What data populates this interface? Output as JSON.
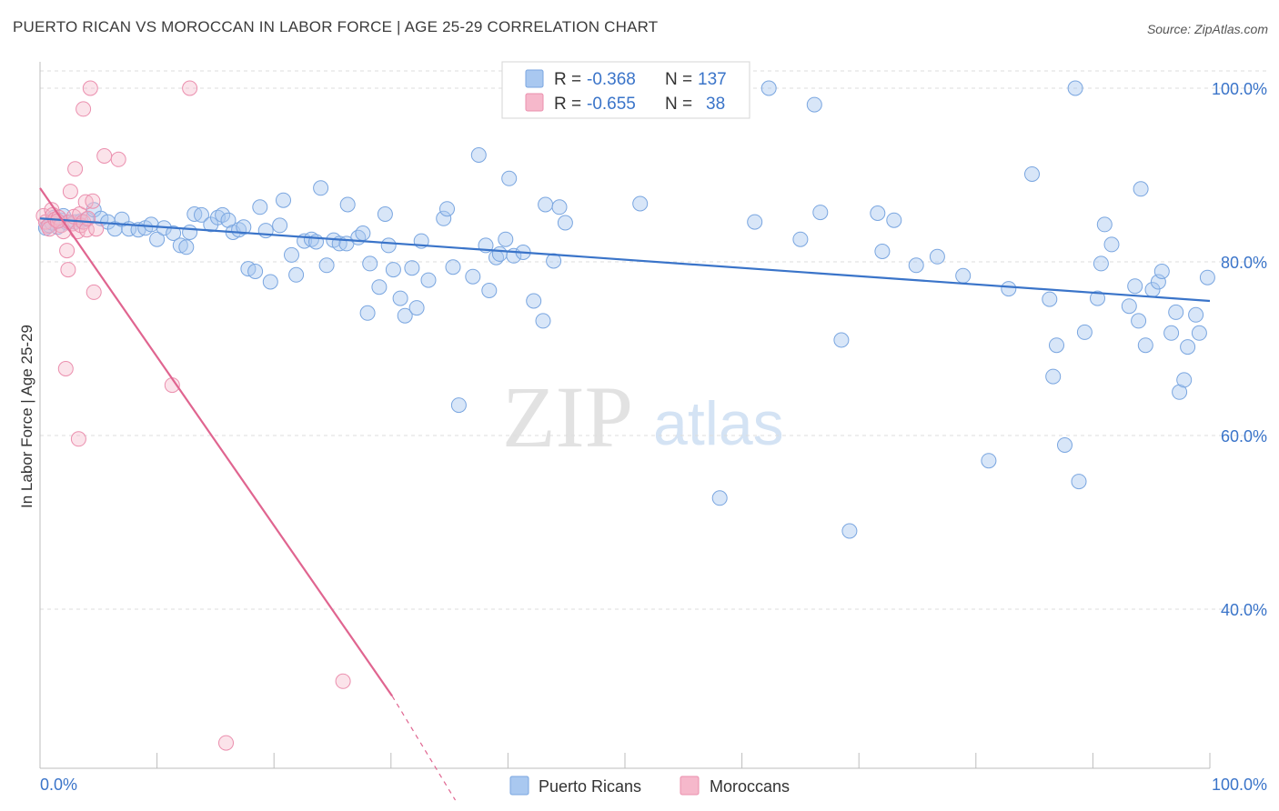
{
  "header": {
    "title": "PUERTO RICAN VS MOROCCAN IN LABOR FORCE | AGE 25-29 CORRELATION CHART",
    "source": "Source: ZipAtlas.com"
  },
  "watermark": {
    "zip": "ZIP",
    "atlas": "atlas"
  },
  "legend": {
    "rows": [
      {
        "r_label": "R = ",
        "r_value": "-0.368",
        "n_label": "N = ",
        "n_value": "137",
        "color": "#a9c8f0"
      },
      {
        "r_label": "R = ",
        "r_value": "-0.655",
        "n_label": "N = ",
        "n_value": "38",
        "color": "#f6b8cb"
      }
    ]
  },
  "bottom_legend": {
    "items": [
      {
        "label": "Puerto Ricans",
        "color": "#a9c8f0"
      },
      {
        "label": "Moroccans",
        "color": "#f6b8cb"
      }
    ]
  },
  "chart_data": {
    "type": "scatter",
    "ylabel": "In Labor Force | Age 25-29",
    "xlim": [
      0,
      100
    ],
    "ylim": [
      18,
      102
    ],
    "x_tick_labels": [
      "0.0%",
      "100.0%"
    ],
    "y_ticks": [
      40,
      60,
      80,
      100
    ],
    "y_tick_labels": [
      "40.0%",
      "60.0%",
      "80.0%",
      "100.0%"
    ],
    "grid": true,
    "colors": {
      "blue": "#3a74c9",
      "pink": "#e06590",
      "blue_fill": "#a9c8f0",
      "pink_fill": "#f6b8cb"
    },
    "series": [
      {
        "name": "Puerto Ricans",
        "trend": {
          "x0": 0,
          "y0": 85.0,
          "x1": 100,
          "y1": 75.5
        },
        "points": [
          [
            0.5,
            83.9
          ],
          [
            0.8,
            84.2
          ],
          [
            1.0,
            84.5
          ],
          [
            1.2,
            85.1
          ],
          [
            1.5,
            84.0
          ],
          [
            1.8,
            84.8
          ],
          [
            2.0,
            85.3
          ],
          [
            2.3,
            84.5
          ],
          [
            3.0,
            84.6
          ],
          [
            3.5,
            84.7
          ],
          [
            4.0,
            84.9
          ],
          [
            4.6,
            86.0
          ],
          [
            5.2,
            85.0
          ],
          [
            5.8,
            84.6
          ],
          [
            6.4,
            83.8
          ],
          [
            7.0,
            84.9
          ],
          [
            7.6,
            83.8
          ],
          [
            8.4,
            83.7
          ],
          [
            9.0,
            83.9
          ],
          [
            9.5,
            84.3
          ],
          [
            10.0,
            82.6
          ],
          [
            10.6,
            83.9
          ],
          [
            11.4,
            83.3
          ],
          [
            12.0,
            81.9
          ],
          [
            12.5,
            81.7
          ],
          [
            12.8,
            83.4
          ],
          [
            13.2,
            85.5
          ],
          [
            13.8,
            85.4
          ],
          [
            14.6,
            84.3
          ],
          [
            15.2,
            85.1
          ],
          [
            15.6,
            85.4
          ],
          [
            16.1,
            84.8
          ],
          [
            16.5,
            83.4
          ],
          [
            17.0,
            83.7
          ],
          [
            17.4,
            84.0
          ],
          [
            17.8,
            79.2
          ],
          [
            18.4,
            78.9
          ],
          [
            18.8,
            86.3
          ],
          [
            19.3,
            83.6
          ],
          [
            19.7,
            77.7
          ],
          [
            20.5,
            84.2
          ],
          [
            20.8,
            87.1
          ],
          [
            21.5,
            80.8
          ],
          [
            21.9,
            78.5
          ],
          [
            22.6,
            82.4
          ],
          [
            23.2,
            82.6
          ],
          [
            23.6,
            82.3
          ],
          [
            24.0,
            88.5
          ],
          [
            24.5,
            79.6
          ],
          [
            25.1,
            82.5
          ],
          [
            25.6,
            82.1
          ],
          [
            26.2,
            82.1
          ],
          [
            26.3,
            86.6
          ],
          [
            27.2,
            82.8
          ],
          [
            27.6,
            83.3
          ],
          [
            28.0,
            74.1
          ],
          [
            28.2,
            79.8
          ],
          [
            29.0,
            77.1
          ],
          [
            29.5,
            85.5
          ],
          [
            29.8,
            81.9
          ],
          [
            30.2,
            79.1
          ],
          [
            30.8,
            75.8
          ],
          [
            31.2,
            73.8
          ],
          [
            31.8,
            79.3
          ],
          [
            32.2,
            74.7
          ],
          [
            32.6,
            82.4
          ],
          [
            33.2,
            77.9
          ],
          [
            34.5,
            85.0
          ],
          [
            34.8,
            86.1
          ],
          [
            35.3,
            79.4
          ],
          [
            35.8,
            63.5
          ],
          [
            37.0,
            78.3
          ],
          [
            37.5,
            92.3
          ],
          [
            38.1,
            81.9
          ],
          [
            38.4,
            76.7
          ],
          [
            39.0,
            80.5
          ],
          [
            39.3,
            80.9
          ],
          [
            39.8,
            82.6
          ],
          [
            40.1,
            89.6
          ],
          [
            40.5,
            80.7
          ],
          [
            41.3,
            81.1
          ],
          [
            42.2,
            75.5
          ],
          [
            43.2,
            86.6
          ],
          [
            43.9,
            80.1
          ],
          [
            44.4,
            86.3
          ],
          [
            44.9,
            84.5
          ],
          [
            43.0,
            73.2
          ],
          [
            47.1,
            100.0
          ],
          [
            48.6,
            100.0
          ],
          [
            51.3,
            86.7
          ],
          [
            55.7,
            100.0
          ],
          [
            58.1,
            52.8
          ],
          [
            61.1,
            84.6
          ],
          [
            62.3,
            100.0
          ],
          [
            65.0,
            82.6
          ],
          [
            66.2,
            98.1
          ],
          [
            66.7,
            85.7
          ],
          [
            68.5,
            71.0
          ],
          [
            69.2,
            49.0
          ],
          [
            71.6,
            85.6
          ],
          [
            72.0,
            81.2
          ],
          [
            73.0,
            84.8
          ],
          [
            74.9,
            79.6
          ],
          [
            76.7,
            80.6
          ],
          [
            78.9,
            78.4
          ],
          [
            81.1,
            57.1
          ],
          [
            82.8,
            76.9
          ],
          [
            84.8,
            90.1
          ],
          [
            86.3,
            75.7
          ],
          [
            86.6,
            66.8
          ],
          [
            86.9,
            70.4
          ],
          [
            87.6,
            58.9
          ],
          [
            88.5,
            100.0
          ],
          [
            88.8,
            54.7
          ],
          [
            89.3,
            71.9
          ],
          [
            90.4,
            75.8
          ],
          [
            90.7,
            79.8
          ],
          [
            91.0,
            84.3
          ],
          [
            91.6,
            82.0
          ],
          [
            93.1,
            74.9
          ],
          [
            93.6,
            77.2
          ],
          [
            93.9,
            73.2
          ],
          [
            94.1,
            88.4
          ],
          [
            94.5,
            70.4
          ],
          [
            95.1,
            76.8
          ],
          [
            95.6,
            77.7
          ],
          [
            95.9,
            78.9
          ],
          [
            96.7,
            71.8
          ],
          [
            97.1,
            74.2
          ],
          [
            97.4,
            65.0
          ],
          [
            97.8,
            66.4
          ],
          [
            98.1,
            70.2
          ],
          [
            98.8,
            73.9
          ],
          [
            99.1,
            71.8
          ],
          [
            99.8,
            78.2
          ]
        ]
      },
      {
        "name": "Moroccans",
        "trend": {
          "x0": 0,
          "y0": 88.5,
          "x1": 30.1,
          "y1": 30.0,
          "dash_x1": 35.5,
          "dash_y1": 18.0
        },
        "points": [
          [
            0.3,
            85.3
          ],
          [
            0.5,
            84.6
          ],
          [
            0.7,
            84.1
          ],
          [
            0.8,
            83.8
          ],
          [
            1.0,
            86.0
          ],
          [
            1.1,
            85.4
          ],
          [
            1.3,
            84.9
          ],
          [
            1.6,
            85.1
          ],
          [
            1.8,
            84.2
          ],
          [
            2.0,
            83.5
          ],
          [
            2.2,
            67.7
          ],
          [
            2.3,
            81.3
          ],
          [
            2.4,
            79.1
          ],
          [
            2.5,
            84.6
          ],
          [
            2.6,
            88.1
          ],
          [
            2.8,
            84.4
          ],
          [
            2.9,
            85.2
          ],
          [
            3.0,
            90.7
          ],
          [
            3.2,
            83.5
          ],
          [
            3.3,
            59.6
          ],
          [
            3.4,
            85.5
          ],
          [
            3.5,
            84.2
          ],
          [
            3.7,
            84.6
          ],
          [
            3.9,
            86.9
          ],
          [
            3.7,
            97.6
          ],
          [
            4.0,
            83.7
          ],
          [
            4.1,
            85.0
          ],
          [
            4.3,
            100.0
          ],
          [
            4.6,
            76.5
          ],
          [
            4.8,
            83.8
          ],
          [
            5.5,
            92.2
          ],
          [
            6.7,
            91.8
          ],
          [
            11.3,
            65.8
          ],
          [
            12.8,
            100.0
          ],
          [
            15.9,
            24.6
          ],
          [
            25.9,
            31.7
          ],
          [
            4.5,
            87.0
          ],
          [
            1.5,
            84.7
          ]
        ]
      }
    ]
  }
}
